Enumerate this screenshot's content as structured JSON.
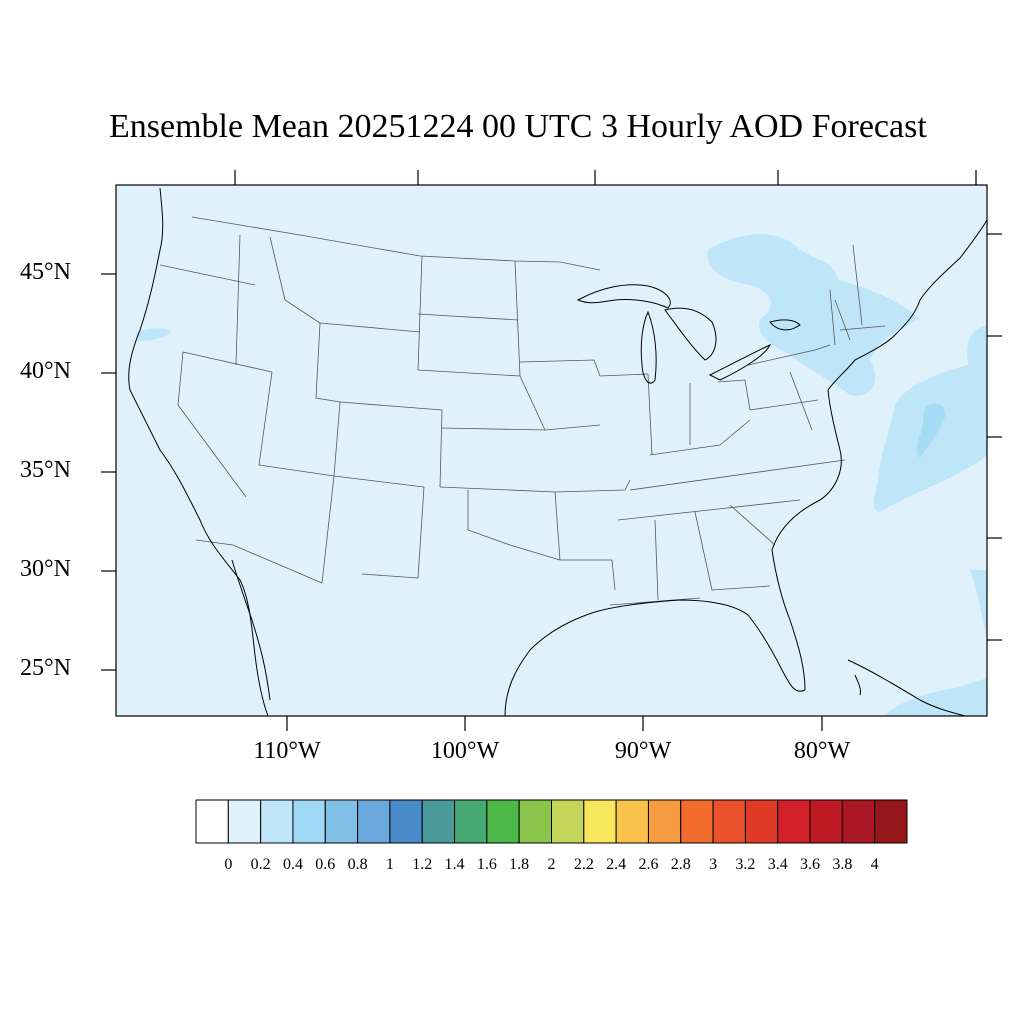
{
  "title": "Ensemble Mean 20251224 00 UTC 3 Hourly AOD Forecast",
  "map": {
    "background_color": "#dff2fb",
    "plume_color_light": "#bee6f8",
    "plume_color_mid": "#a6dbf5",
    "coastline_color": "#000000",
    "border_color": "#555555"
  },
  "lat_labels": [
    "45°N",
    "40°N",
    "35°N",
    "30°N",
    "25°N"
  ],
  "lon_labels": [
    "110°W",
    "100°W",
    "90°W",
    "80°W"
  ],
  "colorbar": {
    "colors": [
      "#ffffff",
      "#dff2fb",
      "#bee6f8",
      "#9fd9f5",
      "#82bfe6",
      "#6aa8dc",
      "#4a8ac8",
      "#4a9a9c",
      "#46a872",
      "#4cb847",
      "#88c54a",
      "#c3d659",
      "#f8e75a",
      "#f8c24d",
      "#f69b3e",
      "#f26c2e",
      "#e9522b",
      "#e03a28",
      "#d42029",
      "#be1a25",
      "#aa1622",
      "#951719"
    ],
    "labels": [
      "0",
      "0.2",
      "0.4",
      "0.6",
      "0.8",
      "1",
      "1.2",
      "1.4",
      "1.6",
      "1.8",
      "2",
      "2.2",
      "2.4",
      "2.6",
      "2.8",
      "3",
      "3.2",
      "3.4",
      "3.6",
      "3.8",
      "4"
    ]
  }
}
